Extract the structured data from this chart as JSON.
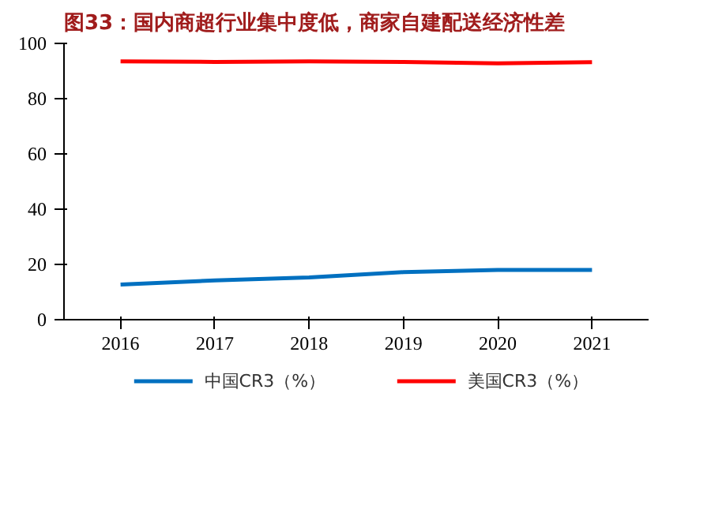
{
  "chart_data": {
    "type": "line",
    "title": "图33：国内商超行业集中度低，商家自建配送经济性差",
    "categories": [
      "2016",
      "2017",
      "2018",
      "2019",
      "2020",
      "2021"
    ],
    "series": [
      {
        "name": "中国CR3（%）",
        "color": "#0070c0",
        "values": [
          12.7,
          14.2,
          15.3,
          17.2,
          18.0,
          18.0
        ]
      },
      {
        "name": "美国CR3（%）",
        "color": "#ff0000",
        "values": [
          93.5,
          93.3,
          93.5,
          93.3,
          92.8,
          93.2
        ]
      }
    ],
    "ylim": [
      0,
      100
    ],
    "yticks": [
      0,
      20,
      40,
      60,
      80,
      100
    ],
    "grid": false,
    "legend": "bottom",
    "line_style": "solid",
    "marker": "none"
  }
}
